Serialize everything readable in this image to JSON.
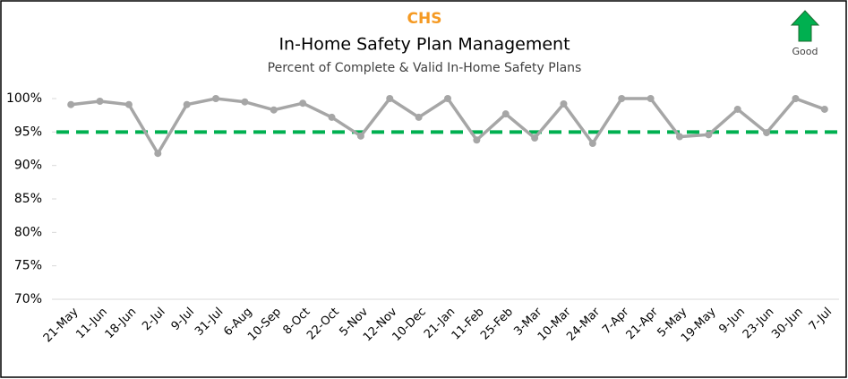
{
  "chart_data": {
    "type": "line",
    "org": "CHS",
    "title": "In-Home Safety Plan Management",
    "subtitle": "Percent of Complete & Valid In-Home Safety Plans",
    "direction_label": "Good",
    "categories": [
      "21-May",
      "11-Jun",
      "18-Jun",
      "2-Jul",
      "9-Jul",
      "31-Jul",
      "6-Aug",
      "10-Sep",
      "8-Oct",
      "22-Oct",
      "5-Nov",
      "12-Nov",
      "10-Dec",
      "21-Jan",
      "11-Feb",
      "25-Feb",
      "3-Mar",
      "10-Mar",
      "24-Mar",
      "7-Apr",
      "21-Apr",
      "5-May",
      "19-May",
      "9-Jun",
      "23-Jun",
      "30-Jun",
      "7-Jul"
    ],
    "values": [
      99.1,
      99.6,
      99.1,
      91.8,
      99.1,
      100,
      99.5,
      98.3,
      99.3,
      97.2,
      94.4,
      100,
      97.2,
      100,
      93.8,
      97.7,
      94.1,
      99.2,
      93.3,
      100,
      100,
      94.3,
      94.6,
      98.4,
      94.9,
      100,
      98.4
    ],
    "color": "#a6a6a6",
    "target": {
      "value": 95,
      "color": "#00b050"
    },
    "ylim": [
      70,
      100
    ],
    "yticks": [
      {
        "value": 70,
        "label": "70%"
      },
      {
        "value": 75,
        "label": "75%"
      },
      {
        "value": 80,
        "label": "80%"
      },
      {
        "value": 85,
        "label": "85%"
      },
      {
        "value": 90,
        "label": "90%"
      },
      {
        "value": 95,
        "label": "95%"
      },
      {
        "value": 100,
        "label": "100%"
      }
    ],
    "grid": false
  }
}
